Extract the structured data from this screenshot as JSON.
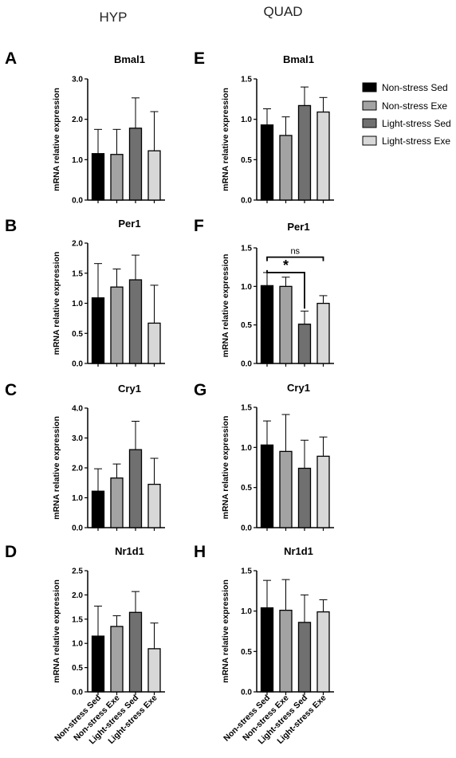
{
  "columns": [
    "HYP",
    "QUAD"
  ],
  "colors": {
    "Non-stress Sed": "#000000",
    "Non-stress Exe": "#a3a3a3",
    "Light-stress Sed": "#707070",
    "Light-stress Exe": "#d8d8d8"
  },
  "legend": [
    "Non-stress Sed",
    "Non-stress Exe",
    "Light-stress Sed",
    "Light-stress Exe"
  ],
  "chart_data": [
    {
      "panel": "A",
      "type": "bar",
      "title": "Bmal1",
      "region": "HYP",
      "ylabel": "mRNA relative expression",
      "categories": [
        "Non-stress Sed",
        "Non-stress Exe",
        "Light-stress Sed",
        "Light-stress Exe"
      ],
      "values": [
        1.15,
        1.13,
        1.78,
        1.22
      ],
      "errors": [
        0.6,
        0.62,
        0.75,
        0.97
      ],
      "ylim": [
        0,
        3.0
      ],
      "yticks": [
        "0.0",
        "1.0",
        "2.0",
        "3.0"
      ],
      "show_categories": false
    },
    {
      "panel": "E",
      "type": "bar",
      "title": "Bmal1",
      "region": "QUAD",
      "ylabel": "mRNA relative expression",
      "categories": [
        "Non-stress Sed",
        "Non-stress Exe",
        "Light-stress Sed",
        "Light-stress Exe"
      ],
      "values": [
        0.93,
        0.8,
        1.17,
        1.09
      ],
      "errors": [
        0.2,
        0.23,
        0.23,
        0.18
      ],
      "ylim": [
        0,
        1.5
      ],
      "yticks": [
        "0.0",
        "0.5",
        "1.0",
        "1.5"
      ],
      "show_categories": false
    },
    {
      "panel": "B",
      "type": "bar",
      "title": "Per1",
      "region": "HYP",
      "ylabel": "mRNA relative expression",
      "categories": [
        "Non-stress Sed",
        "Non-stress Exe",
        "Light-stress Sed",
        "Light-stress Exe"
      ],
      "values": [
        1.09,
        1.27,
        1.39,
        0.67
      ],
      "errors": [
        0.57,
        0.3,
        0.41,
        0.63
      ],
      "ylim": [
        0,
        2.0
      ],
      "yticks": [
        "0.0",
        "0.5",
        "1.0",
        "1.5",
        "2.0"
      ],
      "show_categories": false
    },
    {
      "panel": "F",
      "type": "bar",
      "title": "Per1",
      "region": "QUAD",
      "ylabel": "mRNA relative expression",
      "categories": [
        "Non-stress Sed",
        "Non-stress Exe",
        "Light-stress Sed",
        "Light-stress Exe"
      ],
      "values": [
        1.01,
        1.0,
        0.51,
        0.78
      ],
      "errors": [
        0.17,
        0.12,
        0.17,
        0.1
      ],
      "ylim": [
        0,
        1.5
      ],
      "yticks": [
        "0.0",
        "0.5",
        "1.0",
        "1.5"
      ],
      "show_categories": false,
      "significance": [
        {
          "from": 0,
          "to": 3,
          "label": "ns",
          "y": 1.38
        },
        {
          "from": 0,
          "to": 2,
          "label": "*",
          "y": 1.18
        }
      ]
    },
    {
      "panel": "C",
      "type": "bar",
      "title": "Cry1",
      "region": "HYP",
      "ylabel": "mRNA relative expression",
      "categories": [
        "Non-stress Sed",
        "Non-stress Exe",
        "Light-stress Sed",
        "Light-stress Exe"
      ],
      "values": [
        1.22,
        1.66,
        2.61,
        1.45
      ],
      "errors": [
        0.75,
        0.47,
        0.95,
        0.87
      ],
      "ylim": [
        0,
        4.0
      ],
      "yticks": [
        "0.0",
        "1.0",
        "2.0",
        "3.0",
        "4.0"
      ],
      "show_categories": false
    },
    {
      "panel": "G",
      "type": "bar",
      "title": "Cry1",
      "region": "QUAD",
      "ylabel": "mRNA relative expression",
      "categories": [
        "Non-stress Sed",
        "Non-stress Exe",
        "Light-stress Sed",
        "Light-stress Exe"
      ],
      "values": [
        1.03,
        0.95,
        0.74,
        0.89
      ],
      "errors": [
        0.3,
        0.46,
        0.35,
        0.24
      ],
      "ylim": [
        0,
        1.5
      ],
      "yticks": [
        "0.0",
        "0.5",
        "1.0",
        "1.5"
      ],
      "show_categories": false
    },
    {
      "panel": "D",
      "type": "bar",
      "title": "Nr1d1",
      "region": "HYP",
      "ylabel": "mRNA relative expression",
      "categories": [
        "Non-stress Sed",
        "Non-stress Exe",
        "Light-stress Sed",
        "Light-stress Exe"
      ],
      "values": [
        1.15,
        1.35,
        1.64,
        0.89
      ],
      "errors": [
        0.62,
        0.22,
        0.43,
        0.53
      ],
      "ylim": [
        0,
        2.5
      ],
      "yticks": [
        "0.0",
        "0.5",
        "1.0",
        "1.5",
        "2.0",
        "2.5"
      ],
      "show_categories": true
    },
    {
      "panel": "H",
      "type": "bar",
      "title": "Nr1d1",
      "region": "QUAD",
      "ylabel": "mRNA relative expression",
      "categories": [
        "Non-stress Sed",
        "Non-stress Exe",
        "Light-stress Sed",
        "Light-stress Exe"
      ],
      "values": [
        1.04,
        1.01,
        0.86,
        0.99
      ],
      "errors": [
        0.34,
        0.38,
        0.34,
        0.15
      ],
      "ylim": [
        0,
        1.5
      ],
      "yticks": [
        "0.0",
        "0.5",
        "1.0",
        "1.5"
      ],
      "show_categories": true
    }
  ]
}
